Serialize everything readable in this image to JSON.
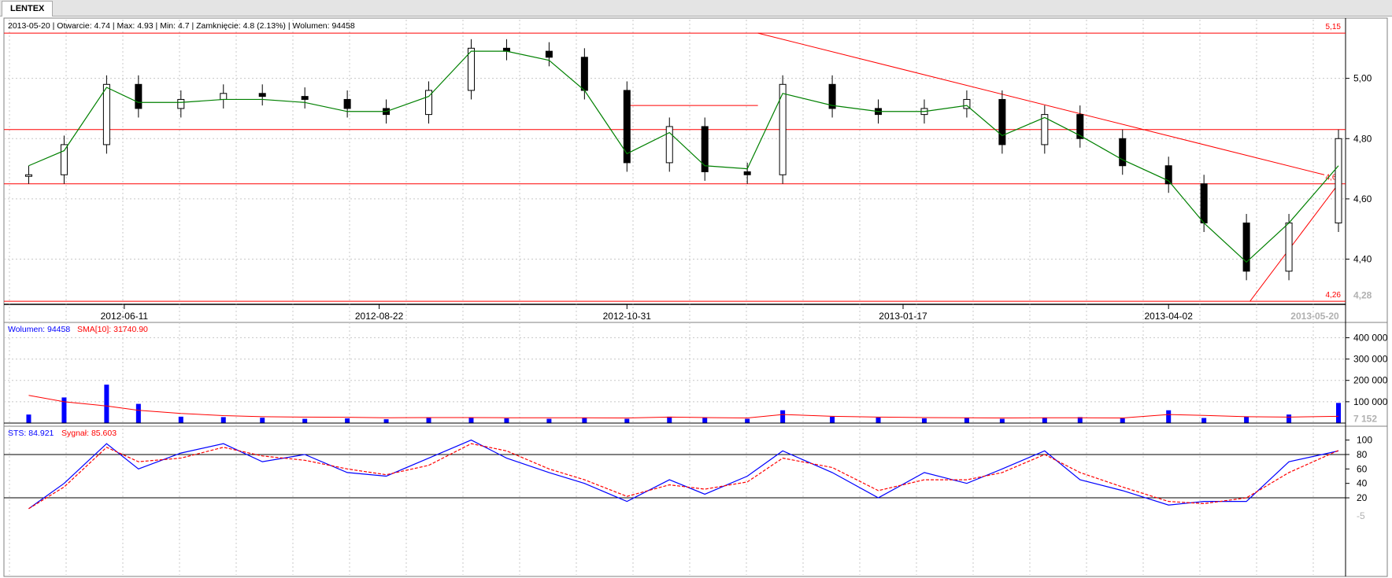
{
  "tab": {
    "label": "LENTEX"
  },
  "info": {
    "main": "2013-05-20 | Otwarcie: 4.74 | Max: 4.93 | Min: 4.7 | Zamknięcie: 4.8 (2.13%)  | Wolumen: 94458",
    "volume_prefix": "Wolumen: 94458",
    "volume_sma": "SMA[10]: 31740.90",
    "sts_value": "STS: 84.921",
    "sts_signal": "Sygnał: 85.603"
  },
  "colors": {
    "price_line": "#ff0000",
    "sma_price": "#008000",
    "volume": "#0000ff",
    "volume_sma": "#ff0000",
    "sts": "#0000ff",
    "signal": "#ff0000",
    "grid": "#c8c8c8"
  },
  "chart_data": [
    {
      "type": "candlestick",
      "title": "LENTEX",
      "x_labels": [
        "2012-06-11",
        "2012-08-22",
        "2012-10-31",
        "2013-01-17",
        "2013-04-02"
      ],
      "last_date_label": "2013-05-20",
      "y_ticks": [
        5.0,
        4.8,
        4.6,
        4.4
      ],
      "y_tick_labels": [
        "5,00",
        "4,80",
        "4,60",
        "4,40"
      ],
      "ylim": [
        4.25,
        5.2
      ],
      "current_price_label": "4,28",
      "horizontal_levels": [
        {
          "value": 5.15,
          "label": "5,15"
        },
        {
          "value": 4.83,
          "label": ""
        },
        {
          "value": 4.65,
          "label": "4,65"
        },
        {
          "value": 4.26,
          "label": "4,26"
        }
      ],
      "short_level": {
        "value": 4.91,
        "from_date": "2012-10-31",
        "to_date": "2012-12-07"
      },
      "trend_lines": [
        {
          "from": [
            "2012-12-07",
            5.15
          ],
          "to": [
            "2013-05-16",
            4.68
          ]
        },
        {
          "from": [
            "2013-04-25",
            4.26
          ],
          "to": [
            "2013-05-20",
            4.65
          ]
        }
      ],
      "dates": [
        "2012-05-15",
        "2012-05-25",
        "2012-06-06",
        "2012-06-15",
        "2012-06-27",
        "2012-07-09",
        "2012-07-20",
        "2012-08-01",
        "2012-08-13",
        "2012-08-24",
        "2012-09-05",
        "2012-09-17",
        "2012-09-27",
        "2012-10-09",
        "2012-10-19",
        "2012-10-31",
        "2012-11-12",
        "2012-11-22",
        "2012-12-04",
        "2012-12-14",
        "2012-12-28",
        "2013-01-10",
        "2013-01-23",
        "2013-02-04",
        "2013-02-14",
        "2013-02-26",
        "2013-03-08",
        "2013-03-20",
        "2013-04-02",
        "2013-04-12",
        "2013-04-24",
        "2013-05-06",
        "2013-05-20"
      ],
      "close": [
        4.68,
        4.78,
        4.98,
        4.9,
        4.93,
        4.95,
        4.94,
        4.93,
        4.9,
        4.88,
        4.96,
        5.1,
        5.09,
        5.07,
        4.96,
        4.72,
        4.84,
        4.69,
        4.68,
        4.98,
        4.9,
        4.88,
        4.9,
        4.93,
        4.78,
        4.88,
        4.8,
        4.71,
        4.65,
        4.52,
        4.36,
        4.52,
        4.8
      ],
      "sma": [
        4.71,
        4.76,
        4.97,
        4.92,
        4.92,
        4.93,
        4.93,
        4.92,
        4.89,
        4.89,
        4.94,
        5.09,
        5.09,
        5.06,
        4.96,
        4.75,
        4.82,
        4.71,
        4.7,
        4.95,
        4.91,
        4.89,
        4.89,
        4.91,
        4.81,
        4.87,
        4.81,
        4.73,
        4.66,
        4.52,
        4.39,
        4.52,
        4.71
      ]
    },
    {
      "type": "bar",
      "title": "Wolumen",
      "y_ticks": [
        400000,
        300000,
        200000,
        100000
      ],
      "y_tick_labels": [
        "400 000",
        "300 000",
        "200 000",
        "100 000"
      ],
      "ylim": [
        0,
        420000
      ],
      "current_label": "7 152",
      "values": [
        40000,
        120000,
        180000,
        90000,
        30000,
        28000,
        25000,
        20000,
        22000,
        18000,
        25000,
        24000,
        22000,
        20000,
        25000,
        20000,
        30000,
        25000,
        20000,
        60000,
        30000,
        26000,
        22000,
        24000,
        20000,
        26000,
        28000,
        22000,
        60000,
        24000,
        30000,
        40000,
        94458
      ],
      "sma": [
        130000,
        100000,
        80000,
        60000,
        45000,
        35000,
        30000,
        28000,
        27000,
        25000,
        26000,
        26000,
        25000,
        25000,
        25000,
        24000,
        28000,
        26000,
        24000,
        40000,
        32000,
        28000,
        26000,
        25000,
        24000,
        25000,
        25000,
        24000,
        40000,
        36000,
        30000,
        28000,
        31741
      ]
    },
    {
      "type": "line",
      "title": "STS",
      "y_ticks": [
        100,
        80,
        60,
        40,
        20
      ],
      "ylim": [
        -5,
        105
      ],
      "current_label": "-5",
      "reference_levels": [
        80,
        20
      ],
      "series": [
        {
          "name": "STS",
          "values": [
            5,
            40,
            95,
            60,
            82,
            95,
            70,
            80,
            55,
            50,
            75,
            100,
            75,
            55,
            40,
            15,
            45,
            25,
            50,
            85,
            55,
            20,
            55,
            40,
            60,
            85,
            45,
            30,
            10,
            15,
            15,
            70,
            85
          ]
        },
        {
          "name": "Sygnał",
          "values": [
            5,
            35,
            90,
            70,
            75,
            90,
            78,
            72,
            60,
            52,
            65,
            95,
            85,
            60,
            45,
            22,
            38,
            32,
            42,
            75,
            62,
            30,
            45,
            45,
            55,
            80,
            55,
            35,
            15,
            12,
            20,
            55,
            85.6
          ]
        }
      ]
    }
  ]
}
